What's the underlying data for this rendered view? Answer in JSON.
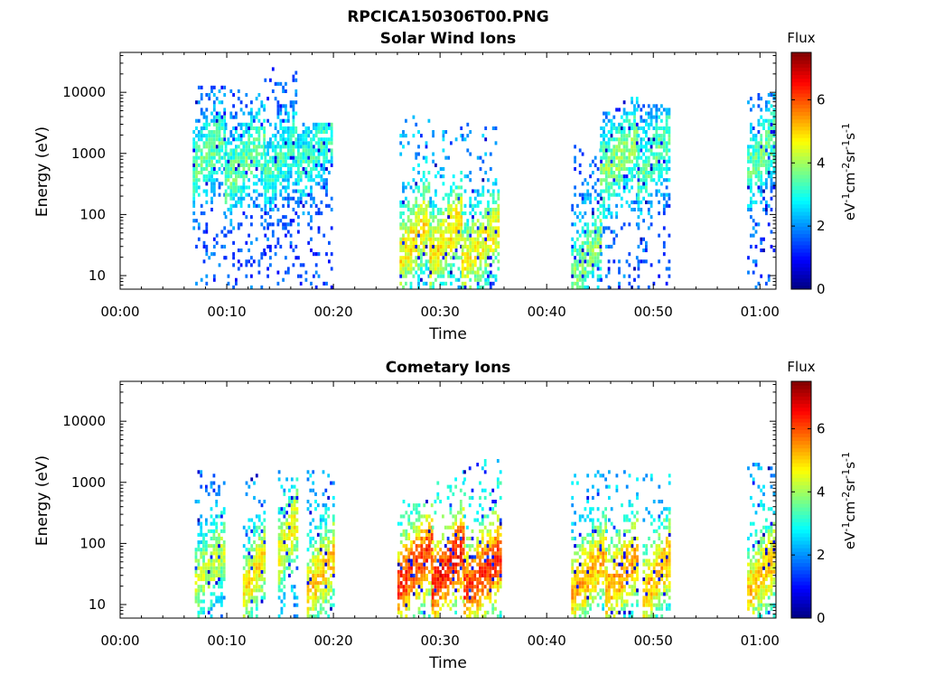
{
  "figure_title": "RPCICA150306T00.PNG",
  "chart_data": [
    {
      "type": "heatmap",
      "title": "Solar Wind Ions",
      "xlabel": "Time",
      "ylabel": "Energy (eV)",
      "x_unit": "minutes after 00:00",
      "xlim": [
        0,
        61.5
      ],
      "ylim": [
        6,
        45000
      ],
      "yscale": "log",
      "x_ticks": [
        "00:00",
        "00:10",
        "00:20",
        "00:30",
        "00:40",
        "00:50",
        "01:00"
      ],
      "y_ticks": [
        "10",
        "100",
        "1000",
        "10000"
      ],
      "colorbar": {
        "label": "Flux",
        "unit_label": "eV-1cm-2sr-1s-1",
        "range": [
          0,
          7.5
        ],
        "ticks": [
          "0",
          "2",
          "4",
          "6"
        ],
        "colormap": "jet"
      },
      "features": [
        {
          "t_start": 6.8,
          "t_end": 9.8,
          "e_low": 6,
          "e_high": 12000,
          "peak_flux": 3.5,
          "core_energy": 500
        },
        {
          "t_start": 9.8,
          "t_end": 13.5,
          "e_low": 6,
          "e_high": 10000,
          "peak_flux": 3.5,
          "core_energy": 350
        },
        {
          "t_start": 13.5,
          "t_end": 16.6,
          "e_low": 6,
          "e_high": 25000,
          "peak_flux": 3.2,
          "core_energy": 400
        },
        {
          "t_start": 16.6,
          "t_end": 19.8,
          "e_low": 6,
          "e_high": 3000,
          "peak_flux": 3.2,
          "core_energy": 500
        },
        {
          "t_start": 26.2,
          "t_end": 29.0,
          "e_low": 6,
          "e_high": 4000,
          "peak_flux": 4.8,
          "core_energy": 20
        },
        {
          "t_start": 29.0,
          "t_end": 32.0,
          "e_low": 6,
          "e_high": 3000,
          "peak_flux": 4.8,
          "core_energy": 20
        },
        {
          "t_start": 32.0,
          "t_end": 35.5,
          "e_low": 6,
          "e_high": 3000,
          "peak_flux": 4.6,
          "core_energy": 15
        },
        {
          "t_start": 42.3,
          "t_end": 45.0,
          "e_low": 6,
          "e_high": 1200,
          "peak_flux": 3.8,
          "core_energy": 10
        },
        {
          "t_start": 45.0,
          "t_end": 48.5,
          "e_low": 6,
          "e_high": 8000,
          "peak_flux": 3.8,
          "core_energy": 400
        },
        {
          "t_start": 48.5,
          "t_end": 51.5,
          "e_low": 6,
          "e_high": 6000,
          "peak_flux": 3.5,
          "core_energy": 400
        },
        {
          "t_start": 58.8,
          "t_end": 61.5,
          "e_low": 6,
          "e_high": 10000,
          "peak_flux": 3.5,
          "core_energy": 500
        }
      ]
    },
    {
      "type": "heatmap",
      "title": "Cometary Ions",
      "xlabel": "Time",
      "ylabel": "Energy (eV)",
      "x_unit": "minutes after 00:00",
      "xlim": [
        0,
        61.5
      ],
      "ylim": [
        6,
        45000
      ],
      "yscale": "log",
      "x_ticks": [
        "00:00",
        "00:10",
        "00:20",
        "00:30",
        "00:40",
        "00:50",
        "01:00"
      ],
      "y_ticks": [
        "10",
        "100",
        "1000",
        "10000"
      ],
      "colorbar": {
        "label": "Flux",
        "unit_label": "eV-1cm-2sr-1s-1",
        "range": [
          0,
          7.5
        ],
        "ticks": [
          "0",
          "2",
          "4",
          "6"
        ],
        "colormap": "jet"
      },
      "features": [
        {
          "t_start": 7.0,
          "t_end": 9.8,
          "e_low": 6,
          "e_high": 1500,
          "peak_flux": 4.2,
          "core_energy": 20
        },
        {
          "t_start": 11.5,
          "t_end": 13.5,
          "e_low": 6,
          "e_high": 1500,
          "peak_flux": 4.8,
          "core_energy": 15
        },
        {
          "t_start": 14.8,
          "t_end": 16.5,
          "e_low": 6,
          "e_high": 1500,
          "peak_flux": 4.6,
          "core_energy": 60
        },
        {
          "t_start": 17.5,
          "t_end": 20.0,
          "e_low": 6,
          "e_high": 1500,
          "peak_flux": 5.0,
          "core_energy": 15
        },
        {
          "t_start": 26.0,
          "t_end": 29.2,
          "e_low": 6,
          "e_high": 500,
          "peak_flux": 6.2,
          "core_energy": 20
        },
        {
          "t_start": 29.2,
          "t_end": 32.2,
          "e_low": 6,
          "e_high": 1500,
          "peak_flux": 6.4,
          "core_energy": 20
        },
        {
          "t_start": 32.2,
          "t_end": 35.6,
          "e_low": 6,
          "e_high": 2500,
          "peak_flux": 6.2,
          "core_energy": 15
        },
        {
          "t_start": 42.3,
          "t_end": 45.5,
          "e_low": 6,
          "e_high": 1500,
          "peak_flux": 5.2,
          "core_energy": 15
        },
        {
          "t_start": 45.5,
          "t_end": 48.5,
          "e_low": 6,
          "e_high": 1500,
          "peak_flux": 5.4,
          "core_energy": 15
        },
        {
          "t_start": 49.0,
          "t_end": 51.5,
          "e_low": 6,
          "e_high": 1200,
          "peak_flux": 5.2,
          "core_energy": 15
        },
        {
          "t_start": 58.8,
          "t_end": 61.5,
          "e_low": 6,
          "e_high": 2000,
          "peak_flux": 5.0,
          "core_energy": 15
        }
      ]
    }
  ]
}
